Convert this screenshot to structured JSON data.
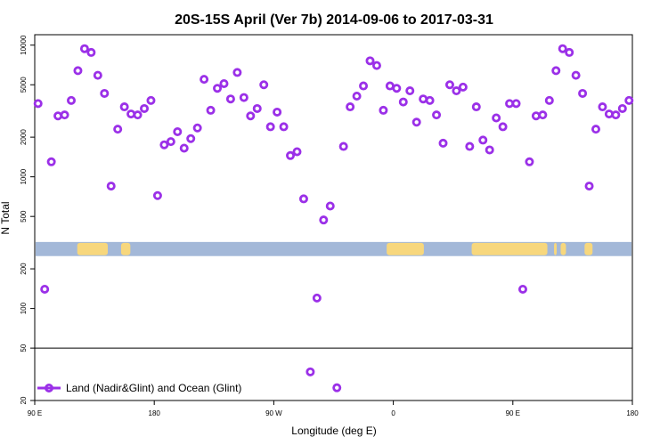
{
  "chart_data": {
    "type": "scatter",
    "title": "20S-15S April (Ver 7b)   2014-09-06 to 2017-03-31",
    "xlabel": "Longitude (deg E)",
    "ylabel": "N Total",
    "y_scale": "log",
    "xlim": [
      90,
      540
    ],
    "ylim": [
      20,
      12000
    ],
    "x_ticks": [
      {
        "value": 90,
        "label": "90 E"
      },
      {
        "value": 180,
        "label": "180"
      },
      {
        "value": 270,
        "label": "90 W"
      },
      {
        "value": 360,
        "label": "0"
      },
      {
        "value": 450,
        "label": "90 E"
      },
      {
        "value": 540,
        "label": "180"
      }
    ],
    "y_ticks": [
      {
        "value": 20,
        "label": "20"
      },
      {
        "value": 50,
        "label": "50"
      },
      {
        "value": 100,
        "label": "100"
      },
      {
        "value": 200,
        "label": "200"
      },
      {
        "value": 500,
        "label": "500"
      },
      {
        "value": 1000,
        "label": "1000"
      },
      {
        "value": 2000,
        "label": "2000"
      },
      {
        "value": 5000,
        "label": "5000"
      },
      {
        "value": 10000,
        "label": "10000"
      }
    ],
    "reference_line_y": 50,
    "land_mask_band": {
      "y_range": [
        250,
        320
      ],
      "ocean_color": "#a3b8d8",
      "land_color": "#f7d77d",
      "land_x_ranges": [
        [
          122,
          145
        ],
        [
          155,
          162
        ],
        [
          355,
          383
        ],
        [
          419,
          476
        ],
        [
          481,
          483
        ],
        [
          486,
          490
        ],
        [
          504,
          510
        ],
        [
          546,
          574
        ],
        [
          625,
          641
        ]
      ]
    },
    "series": [
      {
        "name": "Land (Nadir&Glint) and Ocean (Glint)",
        "color": "#9b30e8",
        "x": [
          92.5,
          97.5,
          102.5,
          107.5,
          112.5,
          117.5,
          122.5,
          127.5,
          132.5,
          137.5,
          142.5,
          147.5,
          152.5,
          157.5,
          162.5,
          167.5,
          172.5,
          177.5,
          182.5,
          187.5,
          192.5,
          197.5,
          202.5,
          207.5,
          212.5,
          217.5,
          222.5,
          227.5,
          232.5,
          237.5,
          242.5,
          247.5,
          252.5,
          257.5,
          262.5,
          267.5,
          272.5,
          277.5,
          282.5,
          287.5,
          292.5,
          297.5,
          302.5,
          307.5,
          312.5,
          317.5,
          322.5,
          327.5,
          332.5,
          337.5,
          342.5,
          347.5,
          352.5,
          357.5,
          362.5,
          367.5,
          372.5,
          377.5,
          382.5,
          387.5,
          392.5,
          397.5,
          402.5,
          407.5,
          412.5,
          417.5,
          422.5,
          427.5,
          432.5,
          437.5,
          442.5,
          447.5,
          452.5,
          457.5,
          462.5,
          467.5,
          472.5,
          477.5,
          482.5,
          487.5,
          492.5,
          497.5,
          502.5,
          507.5,
          512.5,
          517.5,
          522.5,
          527.5,
          532.5,
          537.5
        ],
        "y": [
          3600,
          140,
          1300,
          2900,
          2950,
          3800,
          6400,
          9400,
          8800,
          5900,
          4300,
          850,
          2300,
          3400,
          3000,
          2950,
          3300,
          3800,
          720,
          1750,
          1850,
          2200,
          1650,
          1950,
          2350,
          5500,
          3200,
          4700,
          5100,
          3900,
          6200,
          4000,
          2900,
          3300,
          5000,
          2400,
          3100,
          2400,
          1450,
          1550,
          680,
          33,
          120,
          470,
          600,
          25,
          1700,
          3400,
          4100,
          4900,
          7600,
          7000,
          3200,
          4900,
          4700,
          3700,
          4500,
          2600,
          3900,
          3800,
          2950,
          1800,
          5000,
          4500,
          4800,
          1700,
          3400,
          1900,
          1600,
          2800,
          2400,
          3600,
          3600,
          140,
          1300,
          2900,
          2950,
          3800,
          6400,
          9400,
          8800,
          5900,
          4300,
          850,
          2300,
          3400,
          3000,
          2950,
          3300,
          3800
        ]
      }
    ],
    "legend": {
      "placement": "bottom-left"
    }
  }
}
